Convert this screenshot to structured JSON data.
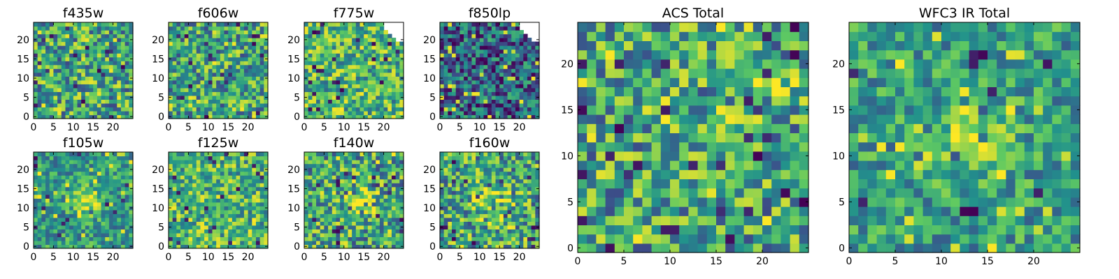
{
  "figure": {
    "background": "#ffffff",
    "colormap": "viridis",
    "colormap_stops": [
      "#440154",
      "#3b528b",
      "#21918c",
      "#5ec962",
      "#fde725"
    ]
  },
  "chart_data": [
    {
      "type": "heatmap",
      "title": "f435w",
      "xticks": [
        0,
        5,
        10,
        15,
        20
      ],
      "yticks": [
        0,
        5,
        10,
        15,
        20
      ],
      "xlim": [
        0,
        25
      ],
      "ylim": [
        0,
        25
      ],
      "grid_size": [
        25,
        25
      ],
      "color_range": [
        0,
        1
      ],
      "texture": "mid",
      "missing_corner": "none"
    },
    {
      "type": "heatmap",
      "title": "f606w",
      "xticks": [
        0,
        5,
        10,
        15,
        20
      ],
      "yticks": [
        0,
        5,
        10,
        15,
        20
      ],
      "xlim": [
        0,
        25
      ],
      "ylim": [
        0,
        25
      ],
      "grid_size": [
        25,
        25
      ],
      "color_range": [
        0,
        1
      ],
      "texture": "mid",
      "missing_corner": "none"
    },
    {
      "type": "heatmap",
      "title": "f775w",
      "xticks": [
        0,
        5,
        10,
        15,
        20
      ],
      "yticks": [
        0,
        5,
        10,
        15,
        20
      ],
      "xlim": [
        0,
        25
      ],
      "ylim": [
        0,
        25
      ],
      "grid_size": [
        25,
        25
      ],
      "color_range": [
        0,
        1
      ],
      "texture": "bright",
      "missing_corner": "top-right"
    },
    {
      "type": "heatmap",
      "title": "f850lp",
      "xticks": [
        0,
        5,
        10,
        15,
        20
      ],
      "yticks": [
        0,
        5,
        10,
        15,
        20
      ],
      "xlim": [
        0,
        25
      ],
      "ylim": [
        0,
        25
      ],
      "grid_size": [
        25,
        25
      ],
      "color_range": [
        0,
        1
      ],
      "texture": "dark",
      "missing_corner": "top-right"
    },
    {
      "type": "heatmap",
      "title": "f105w",
      "xticks": [
        0,
        5,
        10,
        15,
        20
      ],
      "yticks": [
        0,
        5,
        10,
        15,
        20
      ],
      "xlim": [
        0,
        25
      ],
      "ylim": [
        0,
        25
      ],
      "grid_size": [
        25,
        25
      ],
      "color_range": [
        0,
        1
      ],
      "texture": "smooth",
      "missing_corner": "none",
      "peak": [
        13,
        12
      ]
    },
    {
      "type": "heatmap",
      "title": "f125w",
      "xticks": [
        0,
        5,
        10,
        15,
        20
      ],
      "yticks": [
        0,
        5,
        10,
        15,
        20
      ],
      "xlim": [
        0,
        25
      ],
      "ylim": [
        0,
        25
      ],
      "grid_size": [
        25,
        25
      ],
      "color_range": [
        0,
        1
      ],
      "texture": "bright",
      "missing_corner": "none"
    },
    {
      "type": "heatmap",
      "title": "f140w",
      "xticks": [
        0,
        5,
        10,
        15,
        20
      ],
      "yticks": [
        0,
        5,
        10,
        15,
        20
      ],
      "xlim": [
        0,
        25
      ],
      "ylim": [
        0,
        25
      ],
      "grid_size": [
        25,
        25
      ],
      "color_range": [
        0,
        1
      ],
      "texture": "mid",
      "missing_corner": "none",
      "peak": [
        14,
        12
      ]
    },
    {
      "type": "heatmap",
      "title": "f160w",
      "xticks": [
        0,
        5,
        10,
        15,
        20
      ],
      "yticks": [
        0,
        5,
        10,
        15,
        20
      ],
      "xlim": [
        0,
        25
      ],
      "ylim": [
        0,
        25
      ],
      "grid_size": [
        25,
        25
      ],
      "color_range": [
        0,
        1
      ],
      "texture": "mid",
      "missing_corner": "none",
      "peak": [
        13,
        12
      ]
    },
    {
      "type": "heatmap",
      "title": "ACS Total",
      "xticks": [
        0,
        5,
        10,
        15,
        20
      ],
      "yticks": [
        0,
        5,
        10,
        15,
        20
      ],
      "xlim": [
        0,
        25
      ],
      "ylim": [
        0,
        25
      ],
      "grid_size": [
        25,
        25
      ],
      "color_range": [
        0,
        1
      ],
      "texture": "mid",
      "missing_corner": "none",
      "hot_spot": [
        21,
        17
      ]
    },
    {
      "type": "heatmap",
      "title": "WFC3 IR Total",
      "xticks": [
        0,
        5,
        10,
        15,
        20
      ],
      "yticks": [
        0,
        5,
        10,
        15,
        20
      ],
      "xlim": [
        0,
        25
      ],
      "ylim": [
        0,
        25
      ],
      "grid_size": [
        25,
        25
      ],
      "color_range": [
        0,
        1
      ],
      "texture": "smooth",
      "missing_corner": "none",
      "peak": [
        13,
        12
      ]
    }
  ]
}
